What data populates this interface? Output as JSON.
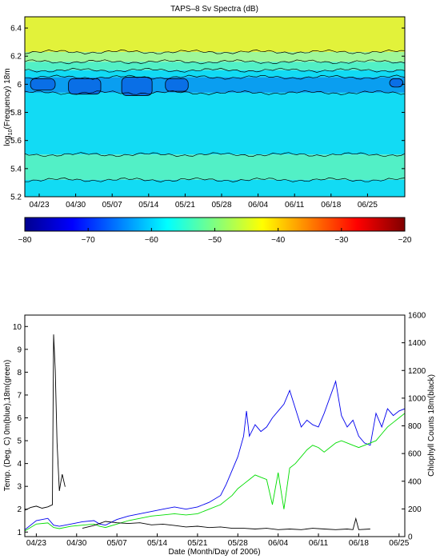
{
  "chart_data": [
    {
      "type": "heatmap",
      "title": "TAPS–8 Sv Spectra (dB)",
      "ylabel_prefix": "log",
      "ylabel_sub": "10",
      "ylabel_suffix": "(Frequency) 18m",
      "xlim": [
        0,
        1
      ],
      "ylim": [
        5.2,
        6.48
      ],
      "x_tick_labels": [
        "04/23",
        "04/30",
        "05/07",
        "05/14",
        "05/21",
        "05/28",
        "06/04",
        "06/11",
        "06/18",
        "06/25"
      ],
      "y_ticks": [
        5.2,
        5.4,
        5.6,
        5.8,
        6.0,
        6.2,
        6.4
      ],
      "y_tick_labels": [
        "5.2",
        "5.4",
        "5.6",
        "5.8",
        "6",
        "6.2",
        "6.4"
      ],
      "bands": [
        {
          "from": 6.23,
          "to": 6.48,
          "color": "#e2f23a",
          "level_db": -42
        },
        {
          "from": 6.16,
          "to": 6.23,
          "color": "#9ef79a",
          "level_db": -46
        },
        {
          "from": 6.1,
          "to": 6.16,
          "color": "#52f0c6",
          "level_db": -50
        },
        {
          "from": 6.05,
          "to": 6.1,
          "color": "#12dbf4",
          "level_db": -54
        },
        {
          "from": 5.94,
          "to": 6.05,
          "color": "#0a9ef0",
          "level_db": -60
        },
        {
          "from": 5.5,
          "to": 5.94,
          "color": "#12dbf4",
          "level_db": -55
        },
        {
          "from": 5.32,
          "to": 5.5,
          "color": "#52f0c6",
          "level_db": -50
        },
        {
          "from": 5.2,
          "to": 5.32,
          "color": "#12dbf4",
          "level_db": -55
        }
      ],
      "dark_patches": [
        {
          "x0": 0.015,
          "x1": 0.08,
          "y0": 5.96,
          "y1": 6.04
        },
        {
          "x0": 0.115,
          "x1": 0.2,
          "y0": 5.93,
          "y1": 6.04
        },
        {
          "x0": 0.255,
          "x1": 0.335,
          "y0": 5.92,
          "y1": 6.05
        },
        {
          "x0": 0.37,
          "x1": 0.43,
          "y0": 5.95,
          "y1": 6.04
        },
        {
          "x0": 0.96,
          "x1": 0.995,
          "y0": 5.98,
          "y1": 6.04
        }
      ],
      "colorbar": {
        "min": -80,
        "max": -20,
        "ticks": [
          -80,
          -70,
          -60,
          -50,
          -40,
          -30,
          -20
        ],
        "tick_labels": [
          "−80",
          "−70",
          "−60",
          "−50",
          "−40",
          "−30",
          "−20"
        ]
      }
    },
    {
      "type": "line",
      "xlabel": "Date (Month/Day of 2006)",
      "ylabel": "Temp. (Deg. C) 0m(blue),18m(green)",
      "ylabel_right": "Chlophyll Counts 18m(black)",
      "xlim": [
        0,
        66
      ],
      "ylim": [
        0.8,
        10.5
      ],
      "ylim_right": [
        0,
        1600
      ],
      "x_tick_labels": [
        "04/23",
        "04/30",
        "05/07",
        "05/14",
        "05/21",
        "05/28",
        "06/04",
        "06/11",
        "06/18",
        "06/25"
      ],
      "x_ticks": [
        2,
        9,
        16,
        23,
        30,
        37,
        44,
        51,
        58,
        65
      ],
      "y_ticks": [
        1,
        2,
        3,
        4,
        5,
        6,
        7,
        8,
        9,
        10
      ],
      "y_tick_labels": [
        "1",
        "2",
        "3",
        "4",
        "5",
        "6",
        "7",
        "8",
        "9",
        "10"
      ],
      "y_right_ticks": [
        0,
        200,
        400,
        600,
        800,
        1000,
        1200,
        1400,
        1600
      ],
      "y_right_tick_labels": [
        "0",
        "200",
        "400",
        "600",
        "800",
        "1000",
        "1200",
        "1400",
        "1600"
      ],
      "series": [
        {
          "color": "#0000ee",
          "axis": "left",
          "x": [
            0,
            2,
            4,
            5,
            6,
            8,
            10,
            12,
            13,
            14,
            16,
            18,
            20,
            22,
            24,
            26,
            28,
            30,
            32,
            34,
            35,
            36,
            37,
            38,
            38.5,
            39,
            40,
            41,
            42,
            43,
            44,
            45,
            46,
            47,
            48,
            49,
            50,
            51,
            52,
            53,
            54,
            55,
            56,
            57,
            58,
            59,
            60,
            61,
            62,
            63,
            64,
            65,
            66
          ],
          "y": [
            1.1,
            1.5,
            1.6,
            1.3,
            1.25,
            1.35,
            1.45,
            1.5,
            1.35,
            1.3,
            1.55,
            1.7,
            1.8,
            1.9,
            2.0,
            2.1,
            2.0,
            2.1,
            2.3,
            2.6,
            3.1,
            3.7,
            4.3,
            5.2,
            6.3,
            5.2,
            5.7,
            5.4,
            5.6,
            6.0,
            6.3,
            6.6,
            7.2,
            6.4,
            5.6,
            5.9,
            5.7,
            5.6,
            6.2,
            6.9,
            7.6,
            6.1,
            5.6,
            5.9,
            5.2,
            4.9,
            4.8,
            6.2,
            5.6,
            6.4,
            6.1,
            6.3,
            6.4
          ]
        },
        {
          "color": "#00dd00",
          "axis": "left",
          "x": [
            0,
            2,
            4,
            5,
            6,
            8,
            10,
            12,
            13,
            14,
            16,
            18,
            20,
            22,
            24,
            26,
            28,
            30,
            32,
            34,
            35,
            36,
            37,
            38,
            39,
            40,
            41,
            42,
            43,
            44,
            45,
            46,
            47,
            48,
            49,
            50,
            51,
            52,
            53,
            54,
            55,
            56,
            57,
            58,
            59,
            60,
            61,
            62,
            63,
            64,
            65,
            66
          ],
          "y": [
            1.05,
            1.35,
            1.4,
            1.2,
            1.15,
            1.25,
            1.3,
            1.35,
            1.25,
            1.2,
            1.35,
            1.5,
            1.6,
            1.7,
            1.75,
            1.8,
            1.75,
            1.8,
            2.0,
            2.2,
            2.4,
            2.6,
            2.9,
            3.1,
            3.3,
            3.5,
            3.4,
            3.3,
            2.2,
            3.6,
            2.0,
            3.8,
            4.0,
            4.3,
            4.6,
            4.8,
            4.7,
            4.5,
            4.7,
            4.9,
            5.0,
            4.9,
            4.8,
            4.7,
            4.8,
            4.9,
            5.0,
            5.3,
            5.6,
            5.8,
            6.0,
            6.2
          ]
        },
        {
          "color": "#000000",
          "axis": "right",
          "x": [
            0,
            1,
            2,
            3,
            4,
            4.8,
            5,
            5.3,
            5.6,
            6,
            6.2,
            6.5,
            7,
            8,
            9,
            10,
            12,
            14,
            16,
            18,
            20,
            22,
            24,
            26,
            28,
            30,
            32,
            34,
            36,
            38,
            40,
            42,
            44,
            46,
            48,
            50,
            52,
            54,
            56,
            57,
            57.5,
            58,
            60
          ],
          "y": [
            190,
            210,
            220,
            205,
            215,
            230,
            1460,
            1200,
            680,
            330,
            380,
            450,
            360,
            null,
            null,
            60,
            80,
            110,
            100,
            95,
            100,
            85,
            90,
            80,
            70,
            75,
            65,
            70,
            60,
            60,
            55,
            60,
            50,
            55,
            50,
            60,
            55,
            50,
            55,
            50,
            130,
            50,
            55
          ]
        }
      ]
    }
  ]
}
